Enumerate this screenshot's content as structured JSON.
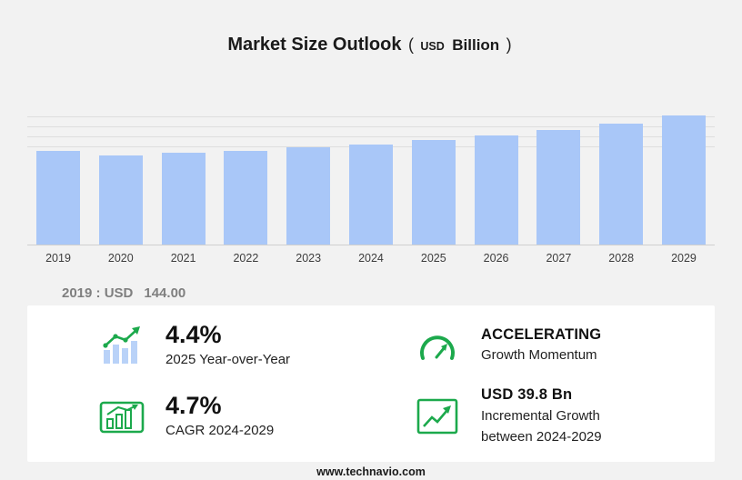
{
  "title": {
    "main": "Market Size Outlook",
    "paren_open": "(",
    "currency": "USD",
    "unit": "Billion",
    "paren_close": ")"
  },
  "chart_data": {
    "type": "bar",
    "title": "Market Size Outlook (USD Billion)",
    "categories": [
      "2019",
      "2020",
      "2021",
      "2022",
      "2023",
      "2024",
      "2025",
      "2026",
      "2027",
      "2028",
      "2029"
    ],
    "values": [
      144.0,
      138.2,
      141.0,
      144.5,
      148.6,
      152.4,
      159.1,
      165.0,
      172.5,
      180.6,
      192.2
    ],
    "xlabel": "",
    "ylabel": "USD Billion",
    "ylim": [
      17,
      202
    ],
    "grid": true,
    "legend": "none",
    "bar_color": "#a9c7f8"
  },
  "annotation": {
    "prefix": "2019 : USD",
    "value": "144.00"
  },
  "stats": [
    {
      "icon": "yoy-bar-chart-icon",
      "value": "4.4%",
      "label": "2025 Year-over-Year"
    },
    {
      "icon": "speedometer-icon",
      "value": "ACCELERATING",
      "label": "Growth Momentum"
    },
    {
      "icon": "cagr-chart-icon",
      "value": "4.7%",
      "label": "CAGR 2024-2029"
    },
    {
      "icon": "incremental-growth-icon",
      "value": "USD 39.8 Bn",
      "label": "Incremental Growth",
      "label2": "between 2024-2029"
    }
  ],
  "footer": {
    "url": "www.technavio.com"
  },
  "colors": {
    "bar": "#a9c7f8",
    "accent_green": "#1ca94c",
    "background": "#f2f2f2",
    "panel": "#ffffff",
    "gray_text": "#7f7f7f"
  }
}
